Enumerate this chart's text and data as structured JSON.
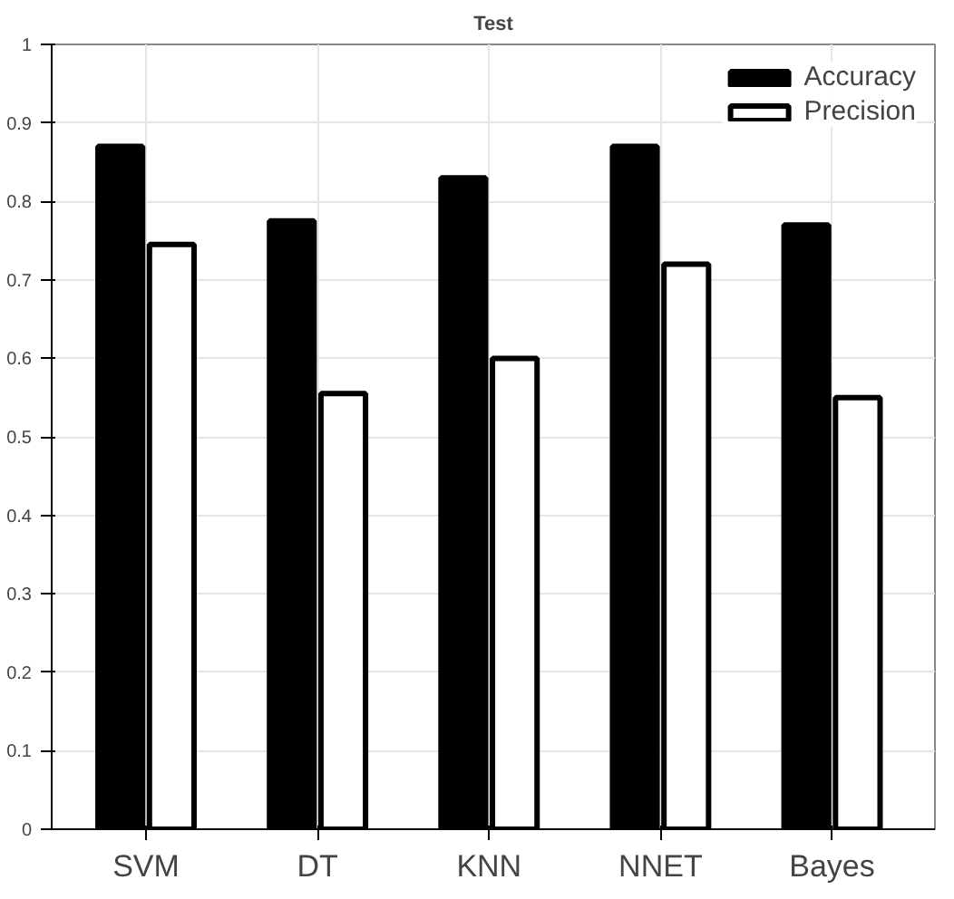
{
  "chart_data": {
    "type": "bar",
    "title": "Test",
    "categories": [
      "SVM",
      "DT",
      "KNN",
      "NNET",
      "Bayes"
    ],
    "series": [
      {
        "name": "Accuracy",
        "color": "#000000",
        "values": [
          0.87,
          0.775,
          0.83,
          0.87,
          0.77
        ]
      },
      {
        "name": "Precision",
        "color": "#ffffff",
        "values": [
          0.745,
          0.555,
          0.6,
          0.72,
          0.55
        ]
      }
    ],
    "ylim": [
      0,
      1
    ],
    "yticks": [
      0,
      0.1,
      0.2,
      0.3,
      0.4,
      0.5,
      0.6,
      0.7,
      0.8,
      0.9,
      1
    ],
    "grid": true,
    "legend": "top right"
  }
}
